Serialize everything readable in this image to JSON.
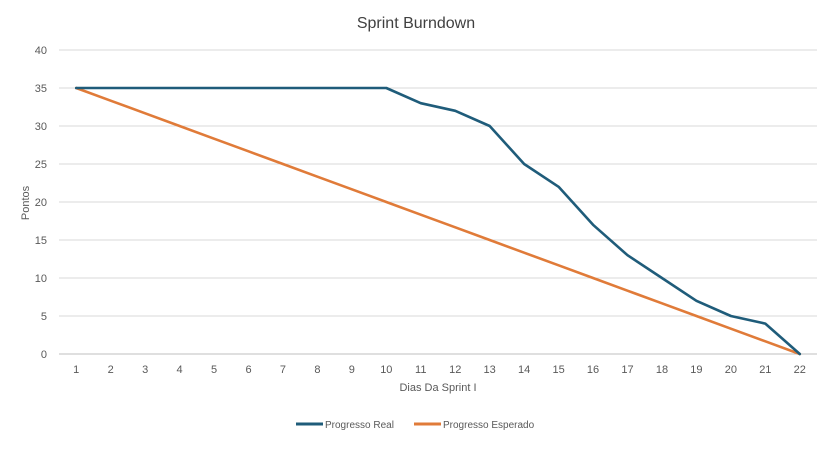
{
  "chart_data": {
    "type": "line",
    "title": "Sprint Burndown",
    "xlabel": "Dias Da Sprint I",
    "ylabel": "Pontos",
    "categories": [
      "1",
      "2",
      "3",
      "4",
      "5",
      "6",
      "7",
      "8",
      "9",
      "10",
      "11",
      "12",
      "13",
      "14",
      "15",
      "16",
      "17",
      "18",
      "19",
      "20",
      "21",
      "22"
    ],
    "ylim": [
      0,
      40
    ],
    "yticks": [
      "0",
      "5",
      "10",
      "15",
      "20",
      "25",
      "30",
      "35",
      "40"
    ],
    "grid": true,
    "legend_position": "bottom",
    "series": [
      {
        "name": "Progresso Real",
        "color": "#1f5c7a",
        "values": [
          35,
          35,
          35,
          35,
          35,
          35,
          35,
          35,
          35,
          35,
          33,
          32,
          30,
          25,
          22,
          17,
          13,
          10,
          7,
          5,
          4,
          0
        ]
      },
      {
        "name": "Progresso Esperado",
        "color": "#e07b39",
        "values": [
          35,
          33.33,
          31.67,
          30,
          28.33,
          26.67,
          25,
          23.33,
          21.67,
          20,
          18.33,
          16.67,
          15,
          13.33,
          11.67,
          10,
          8.33,
          6.67,
          5,
          3.33,
          1.67,
          0
        ]
      }
    ]
  }
}
